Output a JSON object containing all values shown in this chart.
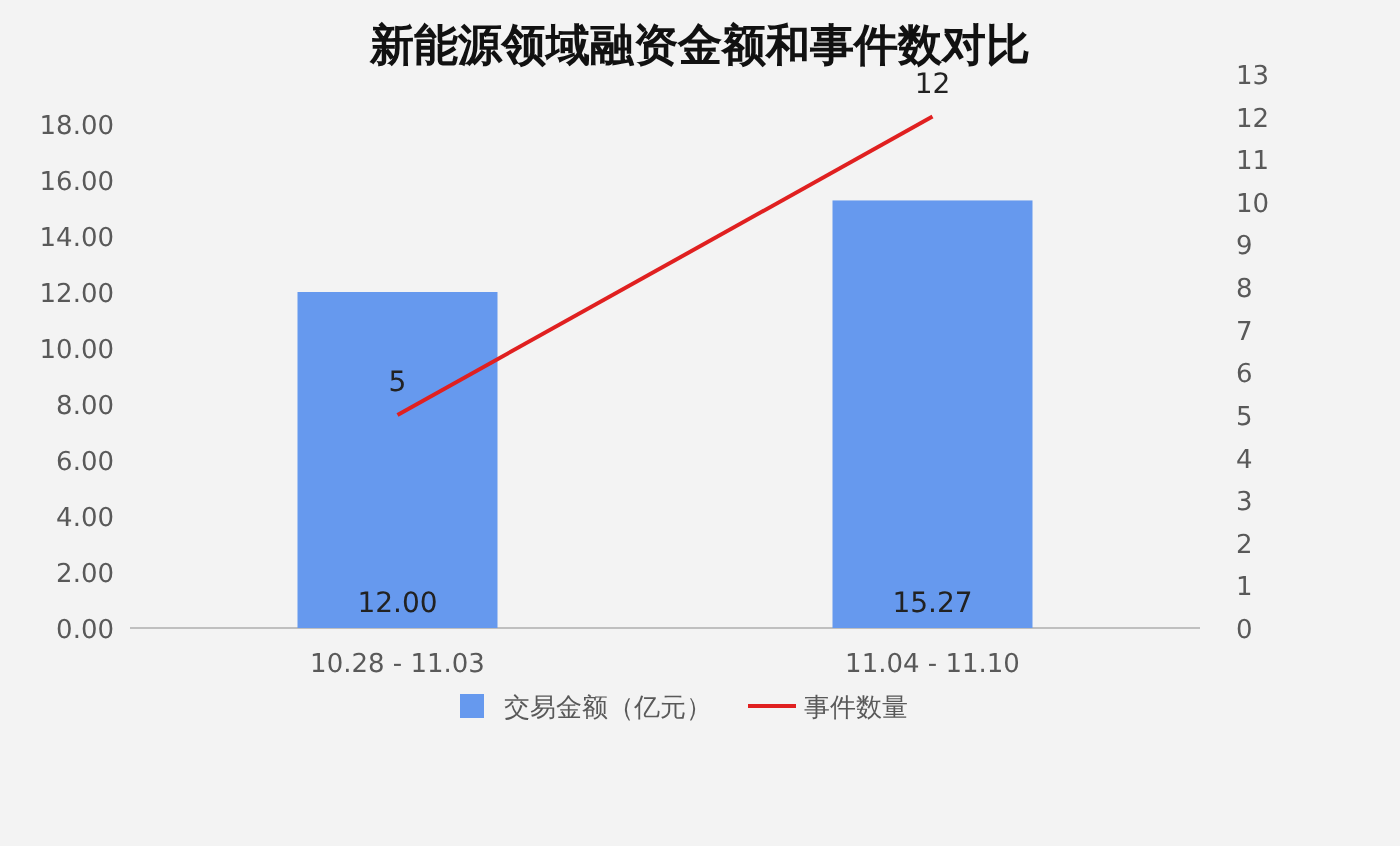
{
  "chart_data": {
    "type": "bar",
    "title": "新能源领域融资金额和事件数对比",
    "categories": [
      "10.28 - 11.03",
      "11.04 - 11.10"
    ],
    "series": [
      {
        "name": "交易金额（亿元）",
        "color": "#6699ee",
        "values": [
          12.0,
          15.27
        ],
        "value_labels": [
          "12.00",
          "15.27"
        ]
      },
      {
        "name": "事件数量",
        "type": "line",
        "axis": "y2",
        "color": "#e02020",
        "values": [
          5,
          12
        ],
        "value_labels": [
          "5",
          "12"
        ]
      }
    ],
    "ylim": [
      0,
      18
    ],
    "yticks": [
      {
        "value": 0,
        "label": "0.00"
      },
      {
        "value": 2,
        "label": "2.00"
      },
      {
        "value": 4,
        "label": "4.00"
      },
      {
        "value": 6,
        "label": "6.00"
      },
      {
        "value": 8,
        "label": "8.00"
      },
      {
        "value": 10,
        "label": "10.00"
      },
      {
        "value": 12,
        "label": "12.00"
      },
      {
        "value": 14,
        "label": "14.00"
      },
      {
        "value": 16,
        "label": "16.00"
      },
      {
        "value": 18,
        "label": "18.00"
      }
    ],
    "y2lim": [
      0,
      13
    ],
    "y2ticks": [
      0,
      1,
      2,
      3,
      4,
      5,
      6,
      7,
      8,
      9,
      10,
      11,
      12,
      13
    ],
    "grid": false,
    "legend": "bottom",
    "marker": "none",
    "line_style": "solid"
  }
}
